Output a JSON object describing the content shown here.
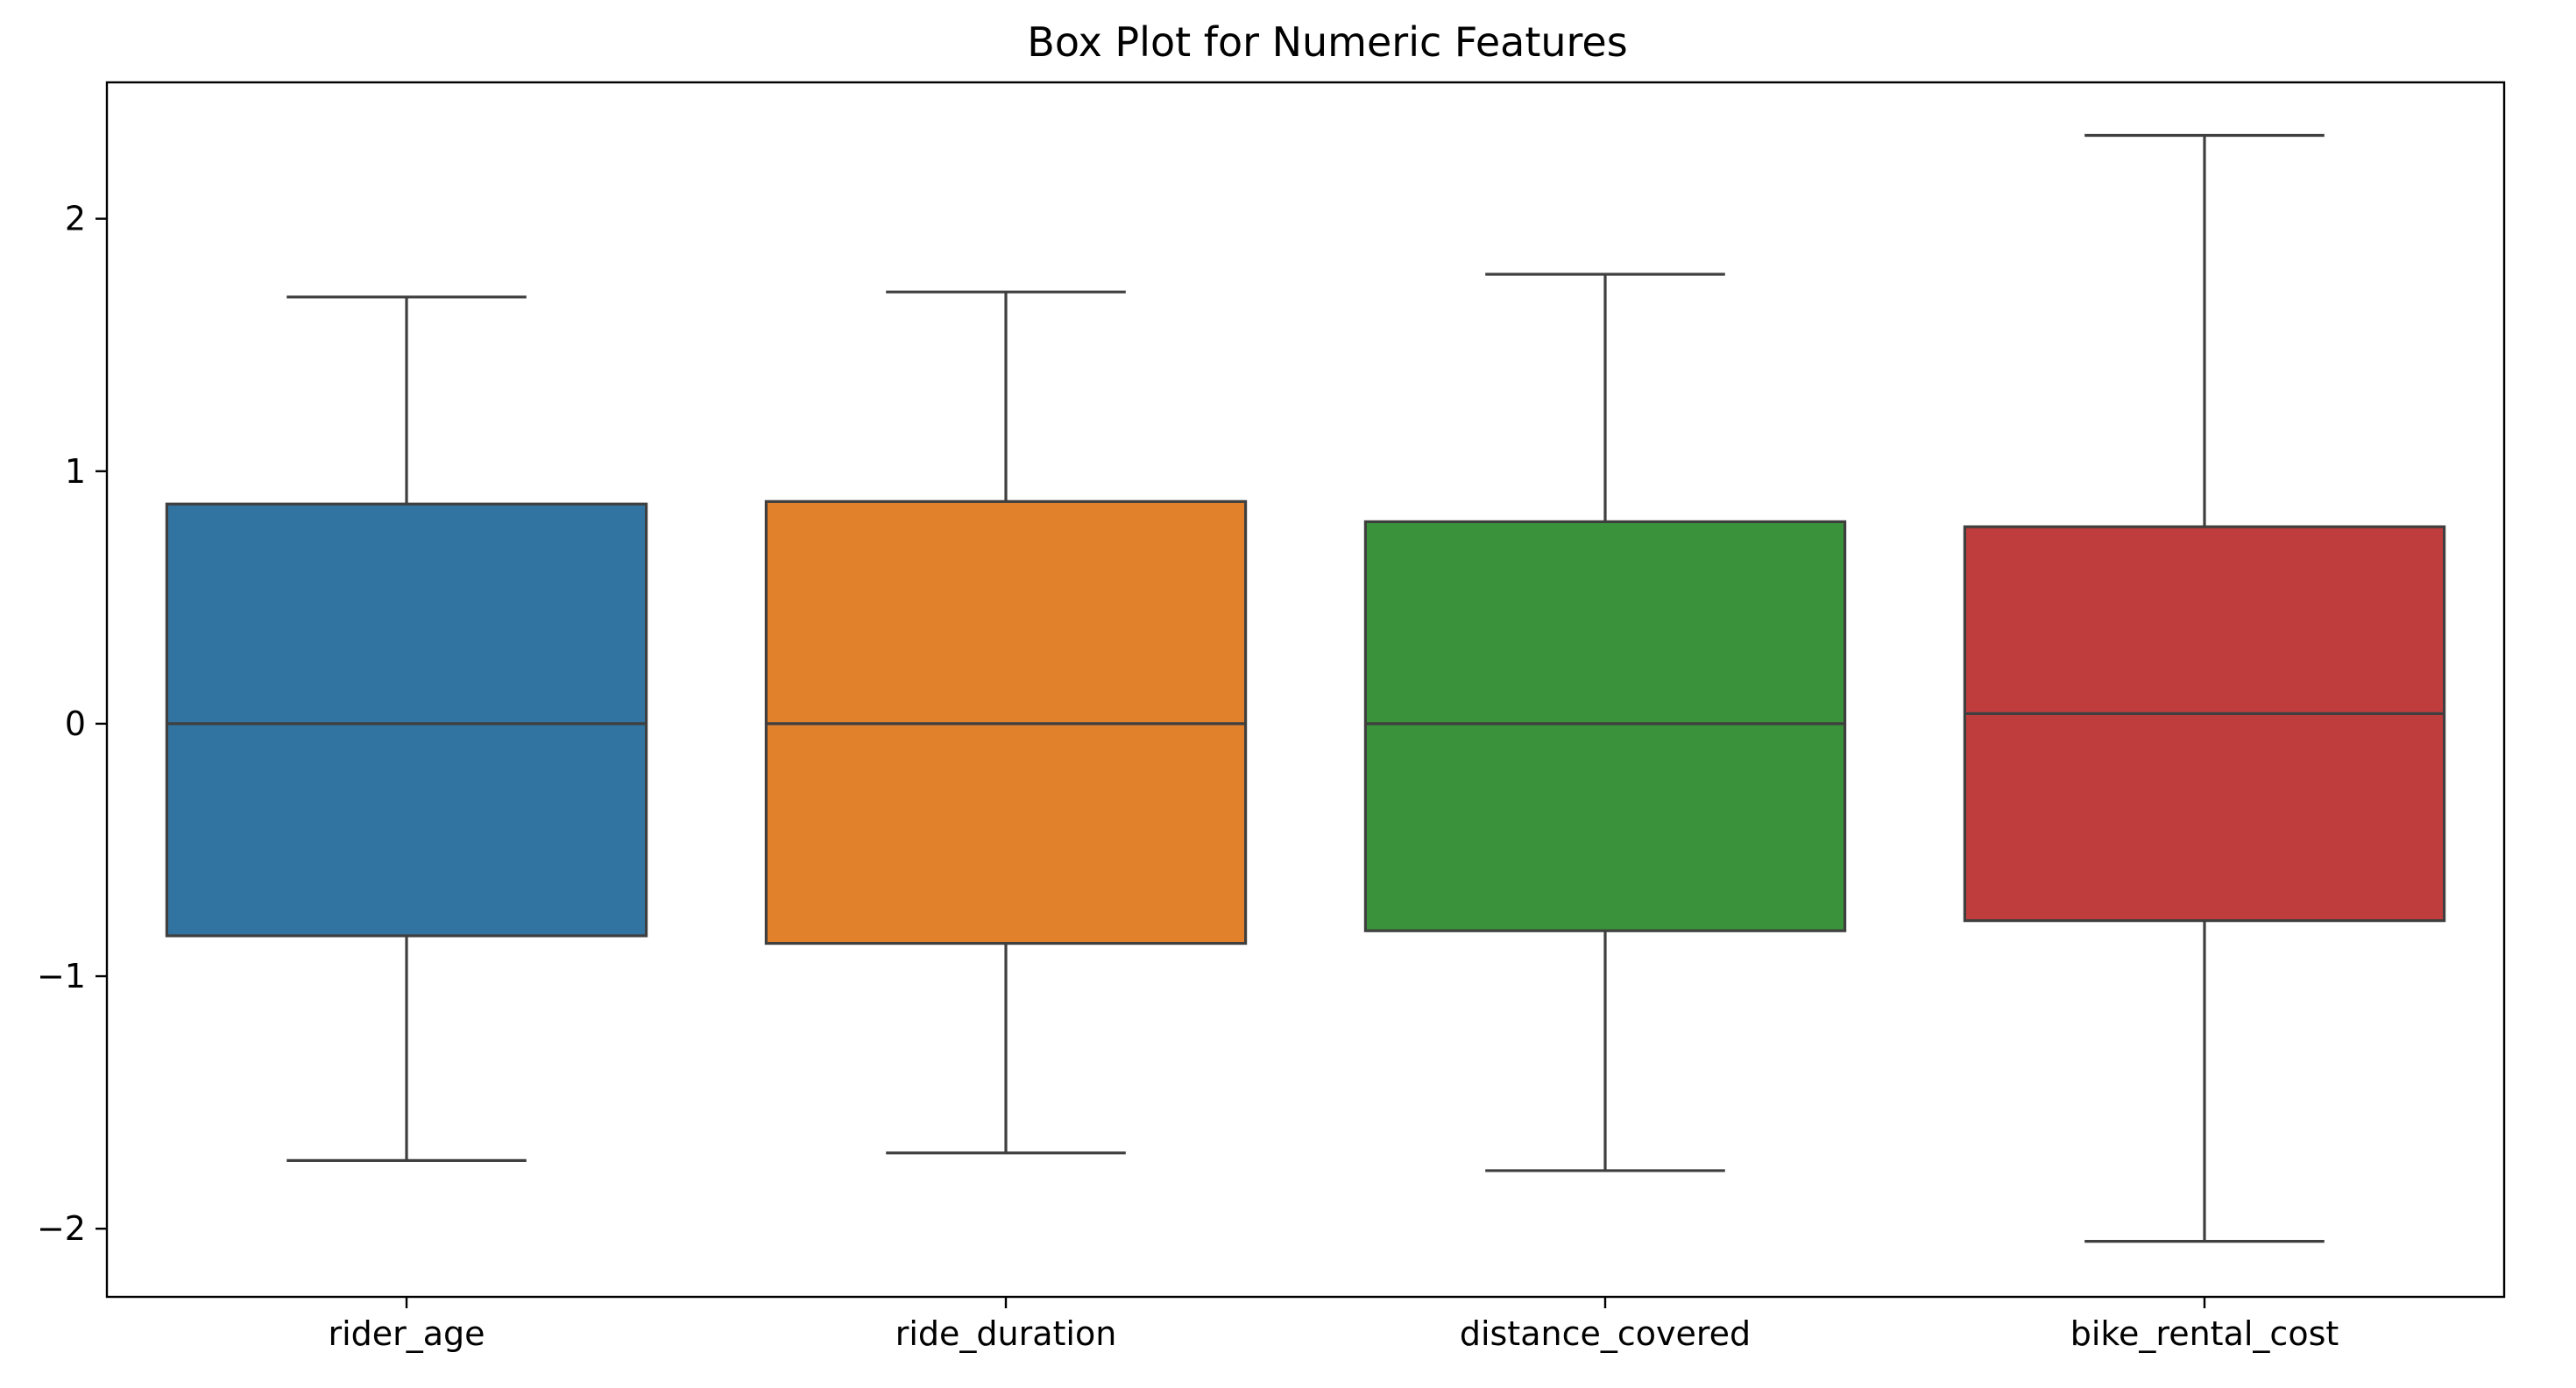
{
  "chart_data": {
    "type": "box",
    "title": "Box Plot for Numeric Features",
    "xlabel": "",
    "ylabel": "",
    "categories": [
      "rider_age",
      "ride_duration",
      "distance_covered",
      "bike_rental_cost"
    ],
    "ylim": [
      -2.27,
      2.54
    ],
    "yticks": [
      {
        "value": 2,
        "label": "2"
      },
      {
        "value": 1,
        "label": "1"
      },
      {
        "value": 0,
        "label": "0"
      },
      {
        "value": -1,
        "label": "−1"
      },
      {
        "value": -2,
        "label": "−2"
      }
    ],
    "grid": false,
    "legend": "none",
    "series": [
      {
        "category": "rider_age",
        "color": "#3274a1",
        "whisker_low": -1.73,
        "q1": -0.84,
        "median": 0.0,
        "q3": 0.87,
        "whisker_high": 1.69
      },
      {
        "category": "ride_duration",
        "color": "#e1812c",
        "whisker_low": -1.7,
        "q1": -0.87,
        "median": 0.0,
        "q3": 0.88,
        "whisker_high": 1.71
      },
      {
        "category": "distance_covered",
        "color": "#3a923a",
        "whisker_low": -1.77,
        "q1": -0.82,
        "median": 0.0,
        "q3": 0.8,
        "whisker_high": 1.78
      },
      {
        "category": "bike_rental_cost",
        "color": "#c03d3e",
        "whisker_low": -2.05,
        "q1": -0.78,
        "median": 0.04,
        "q3": 0.78,
        "whisker_high": 2.33
      }
    ]
  }
}
